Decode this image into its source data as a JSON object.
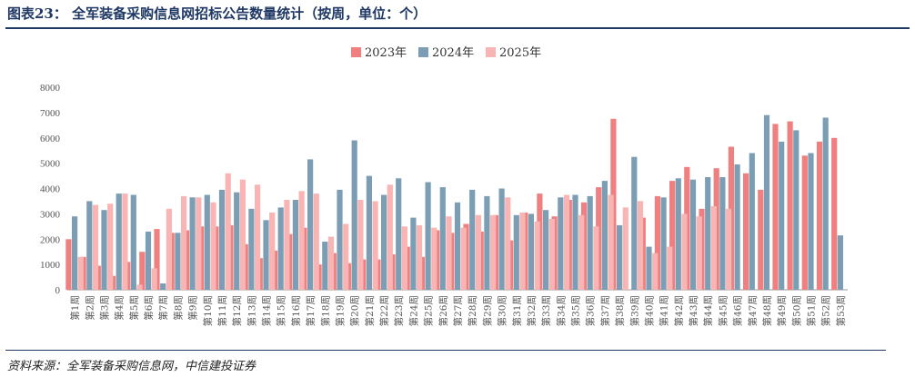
{
  "title": "图表23：   全军装备采购信息网招标公告数量统计（按周，单位：个）",
  "source": "资料来源：全军装备采购信息网，中信建投证券",
  "chart_data": {
    "type": "bar",
    "ylim": [
      0,
      8000
    ],
    "yticks": [
      0,
      1000,
      2000,
      3000,
      4000,
      5000,
      6000,
      7000,
      8000
    ],
    "categories": [
      "第1周",
      "第2周",
      "第3周",
      "第4周",
      "第5周",
      "第6周",
      "第7周",
      "第8周",
      "第9周",
      "第10周",
      "第11周",
      "第12周",
      "第13周",
      "第14周",
      "第15周",
      "第16周",
      "第17周",
      "第18周",
      "第19周",
      "第20周",
      "第21周",
      "第22周",
      "第23周",
      "第24周",
      "第25周",
      "第26周",
      "第27周",
      "第28周",
      "第29周",
      "第30周",
      "第31周",
      "第32周",
      "第33周",
      "第34周",
      "第35周",
      "第36周",
      "第37周",
      "第38周",
      "第39周",
      "第40周",
      "第41周",
      "第42周",
      "第43周",
      "第44周",
      "第45周",
      "第46周",
      "第47周",
      "第48周",
      "第49周",
      "第50周",
      "第51周",
      "第52周",
      "第53周"
    ],
    "series": [
      {
        "name": "2023年",
        "color": "#f08080",
        "values": [
          2000,
          1300,
          950,
          550,
          1100,
          1500,
          2400,
          2250,
          2350,
          2500,
          2500,
          2550,
          1800,
          1250,
          1550,
          2200,
          2450,
          1000,
          1450,
          1050,
          1200,
          1200,
          1400,
          1700,
          1300,
          2350,
          2250,
          2600,
          2300,
          2950,
          1950,
          3050,
          3800,
          2900,
          3550,
          3450,
          4050,
          6750,
          null,
          2850,
          3700,
          4300,
          4850,
          3200,
          4800,
          5650,
          4600,
          3950,
          6550,
          6650,
          5300,
          5850,
          6000
        ]
      },
      {
        "name": "2024年",
        "color": "#7b9eb5",
        "values": [
          2900,
          3500,
          3150,
          3800,
          3750,
          2300,
          250,
          2250,
          3650,
          3750,
          3950,
          3850,
          3200,
          2750,
          3250,
          3550,
          5150,
          1900,
          3950,
          5900,
          4500,
          3750,
          4400,
          2850,
          4250,
          4050,
          3450,
          3950,
          3700,
          4000,
          2950,
          3000,
          3150,
          3650,
          3750,
          3700,
          4300,
          2550,
          5250,
          1700,
          3650,
          4400,
          4350,
          4450,
          4450,
          4950,
          5400,
          6900,
          5850,
          6300,
          5400,
          6800,
          2150
        ]
      },
      {
        "name": "2025年",
        "color": "#f9b4b4",
        "values": [
          1300,
          3350,
          3400,
          3800,
          200,
          850,
          3200,
          3700,
          3650,
          3450,
          4600,
          4350,
          4150,
          3050,
          3550,
          3900,
          3800,
          2100,
          2600,
          3550,
          3500,
          4150,
          2500,
          2550,
          2450,
          2900,
          2450,
          2950,
          2950,
          3650,
          3050,
          2700,
          2800,
          3750,
          2950,
          2500,
          3750,
          3250,
          3500,
          1450,
          1700,
          3000,
          2900,
          3300,
          3200,
          null,
          null,
          null,
          null,
          null,
          null,
          null,
          null
        ]
      }
    ]
  }
}
